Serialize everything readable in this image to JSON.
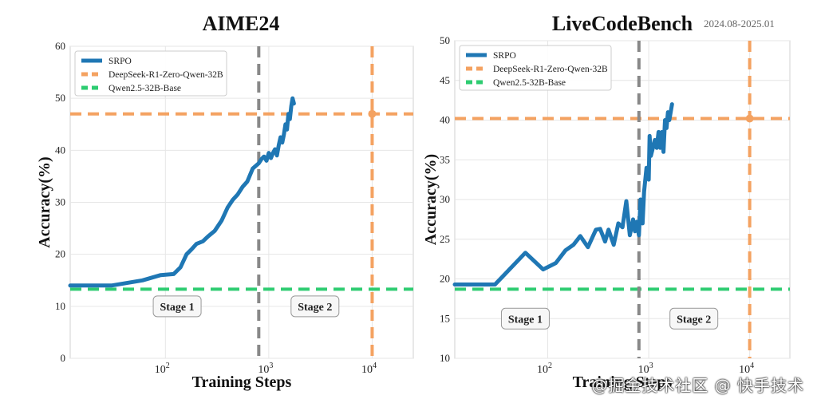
{
  "chart_data": [
    {
      "type": "line",
      "title": "AIME24",
      "subtitle": "",
      "xlabel": "Training Steps",
      "ylabel": "Accuracy(%)",
      "xscale": "log",
      "xlim": [
        12,
        25000
      ],
      "ylim": [
        0,
        60
      ],
      "yticks": [
        0,
        10,
        20,
        30,
        40,
        50,
        60
      ],
      "xticks": [
        {
          "value": 100,
          "base": "10",
          "exp": "2"
        },
        {
          "value": 1000,
          "base": "10",
          "exp": "3"
        },
        {
          "value": 10000,
          "base": "10",
          "exp": "4"
        }
      ],
      "grid": true,
      "legend": "top-left",
      "series": [
        {
          "name": "SRPO",
          "style": "solid",
          "color": "#1f77b4",
          "x": [
            12,
            30,
            60,
            90,
            120,
            140,
            160,
            180,
            200,
            230,
            260,
            300,
            350,
            400,
            450,
            500,
            560,
            620,
            700,
            800,
            850,
            900,
            950,
            1000,
            1050,
            1100,
            1150,
            1200,
            1250,
            1300,
            1350,
            1400,
            1450,
            1500,
            1550,
            1600,
            1650,
            1700,
            1750
          ],
          "y": [
            14,
            14,
            15,
            16,
            16.2,
            17.5,
            20,
            21,
            22,
            22.5,
            23.5,
            24.5,
            26.5,
            29,
            30.5,
            31.5,
            33,
            34,
            36.5,
            37.5,
            38.3,
            38.8,
            38,
            39.5,
            38.5,
            39.5,
            40.2,
            39,
            41,
            42.5,
            41.5,
            43,
            45,
            44,
            47,
            46,
            48.5,
            50,
            49
          ]
        },
        {
          "name": "DeepSeek-R1-Zero-Qwen-32B",
          "style": "dashed",
          "color": "#f4a261",
          "hline": 47,
          "marker": {
            "x": 10000,
            "y": 47
          }
        },
        {
          "name": "Qwen2.5-32B-Base",
          "style": "dashed",
          "color": "#2ecc71",
          "hline": 13.3
        }
      ],
      "vlines": [
        {
          "x": 800,
          "color": "#888888"
        },
        {
          "x": 10000,
          "color": "#f4a261"
        }
      ],
      "annotations": [
        {
          "text": "Stage 1",
          "x": 130,
          "y": 10
        },
        {
          "text": "Stage 2",
          "x": 2800,
          "y": 10
        }
      ]
    },
    {
      "type": "line",
      "title": "LiveCodeBench",
      "subtitle": "2024.08-2025.01",
      "xlabel": "Training Steps",
      "ylabel": "Accuracy(%)",
      "xscale": "log",
      "xlim": [
        12,
        25000
      ],
      "ylim": [
        10,
        50
      ],
      "yticks": [
        10,
        15,
        20,
        25,
        30,
        35,
        40,
        45,
        50
      ],
      "xticks": [
        {
          "value": 100,
          "base": "10",
          "exp": "2"
        },
        {
          "value": 1000,
          "base": "10",
          "exp": "3"
        },
        {
          "value": 10000,
          "base": "10",
          "exp": "4"
        }
      ],
      "grid": true,
      "legend": "top-left",
      "series": [
        {
          "name": "SRPO",
          "style": "solid",
          "color": "#1f77b4",
          "x": [
            12,
            30,
            60,
            90,
            120,
            150,
            180,
            210,
            250,
            300,
            330,
            370,
            400,
            450,
            500,
            550,
            600,
            650,
            700,
            730,
            760,
            800,
            830,
            870,
            900,
            950,
            1000,
            1020,
            1050,
            1100,
            1150,
            1200,
            1250,
            1300,
            1350,
            1400,
            1450,
            1500,
            1550,
            1600,
            1700
          ],
          "y": [
            19.3,
            19.3,
            23.3,
            21.2,
            22,
            23.6,
            24.3,
            25.4,
            24,
            26.2,
            26.3,
            24.7,
            26.2,
            24.3,
            27,
            26.5,
            29.8,
            25.5,
            27.5,
            26,
            27.2,
            25.5,
            30,
            27,
            31,
            34,
            32.5,
            38,
            35.5,
            36.5,
            37.5,
            36.5,
            38.5,
            36.5,
            38.5,
            36,
            40,
            39,
            41,
            40,
            42
          ]
        },
        {
          "name": "DeepSeek-R1-Zero-Qwen-32B",
          "style": "dashed",
          "color": "#f4a261",
          "hline": 40.2,
          "marker": {
            "x": 10000,
            "y": 40.2
          }
        },
        {
          "name": "Qwen2.5-32B-Base",
          "style": "dashed",
          "color": "#2ecc71",
          "hline": 18.7
        }
      ],
      "vlines": [
        {
          "x": 800,
          "color": "#888888"
        },
        {
          "x": 10000,
          "color": "#f4a261"
        }
      ],
      "annotations": [
        {
          "text": "Stage 1",
          "x": 60,
          "y": 15
        },
        {
          "text": "Stage 2",
          "x": 2800,
          "y": 15
        }
      ]
    }
  ],
  "watermark": "@掘金技术社区 @ 快手技术"
}
